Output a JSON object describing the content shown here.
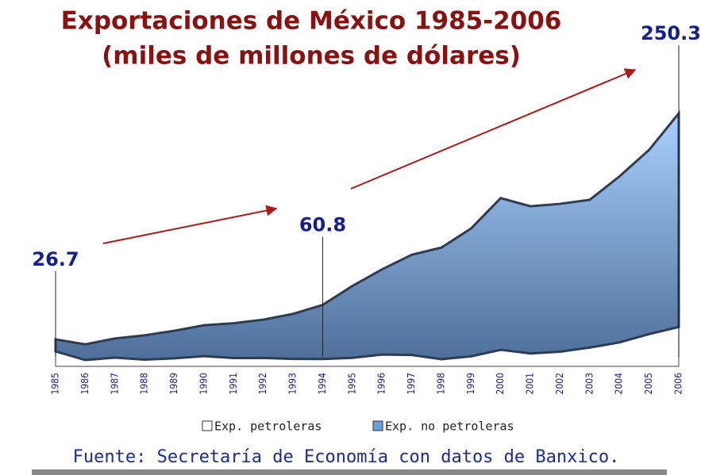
{
  "chart_data": {
    "type": "stacked-area",
    "title": "Exportaciones de México 1985-2006",
    "subtitle": "(miles de millones de dólares)",
    "categories": [
      "1985",
      "1986",
      "1987",
      "1988",
      "1989",
      "1990",
      "1991",
      "1992",
      "1993",
      "1994",
      "1995",
      "1996",
      "1997",
      "1998",
      "1999",
      "2000",
      "2001",
      "2002",
      "2003",
      "2004",
      "2005",
      "2006"
    ],
    "series": [
      {
        "name": "Exp. petroleras",
        "color": "#ffffff",
        "values": [
          14.8,
          6.3,
          8.6,
          6.7,
          7.9,
          10.1,
          8.2,
          8.3,
          7.4,
          7.3,
          8.4,
          11.7,
          11.3,
          7.1,
          9.9,
          16.4,
          12.8,
          14.5,
          18.6,
          23.7,
          31.9,
          39.0
        ]
      },
      {
        "name": "Exp. no petroleras",
        "color": "#7fa8d8",
        "values": [
          11.9,
          15.5,
          19.0,
          24.0,
          27.3,
          30.6,
          34.5,
          37.9,
          44.5,
          53.5,
          71.1,
          84.3,
          99.1,
          110.4,
          126.5,
          150.1,
          145.6,
          146.3,
          146.2,
          164.2,
          182.3,
          211.3
        ]
      }
    ],
    "annotations": [
      {
        "category": "1985",
        "value": 26.7
      },
      {
        "category": "1994",
        "value": 60.8
      },
      {
        "category": "2006",
        "value": 250.3
      }
    ],
    "legend": "bottom",
    "source": "Fuente: Secretaría de Economía con datos de Banxico."
  }
}
